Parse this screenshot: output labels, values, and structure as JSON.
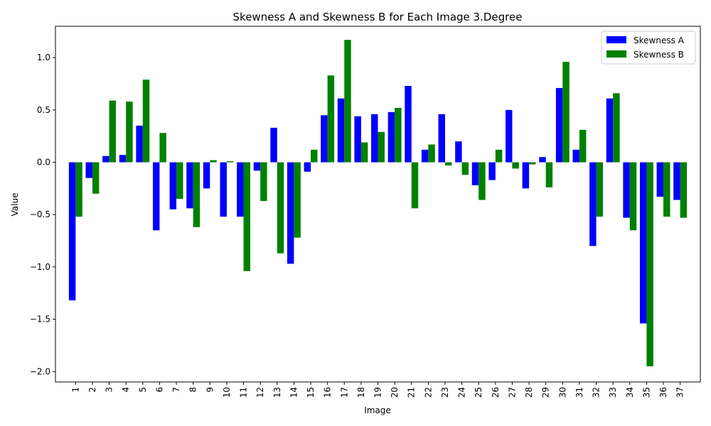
{
  "chart_data": {
    "type": "bar",
    "title": "Skewness A and Skewness B for Each Image 3.Degree",
    "xlabel": "Image",
    "ylabel": "Value",
    "ylim": [
      -2.1,
      1.3
    ],
    "yticks": [
      -2.0,
      -1.5,
      -1.0,
      -0.5,
      0.0,
      0.5,
      1.0
    ],
    "ytick_labels": [
      "−2.0",
      "−1.5",
      "−1.0",
      "−0.5",
      "0.0",
      "0.5",
      "1.0"
    ],
    "grid": false,
    "legend_position": "top-right",
    "categories": [
      "1",
      "2",
      "3",
      "4",
      "5",
      "6",
      "7",
      "8",
      "9",
      "10",
      "11",
      "12",
      "13",
      "14",
      "15",
      "16",
      "17",
      "18",
      "19",
      "20",
      "21",
      "22",
      "23",
      "24",
      "25",
      "26",
      "27",
      "28",
      "29",
      "30",
      "31",
      "32",
      "33",
      "34",
      "35",
      "36",
      "37"
    ],
    "series": [
      {
        "name": "Skewness A",
        "color": "#0000ff",
        "values": [
          -1.32,
          -0.15,
          0.06,
          0.07,
          0.35,
          -0.65,
          -0.45,
          -0.44,
          -0.25,
          -0.52,
          -0.52,
          -0.08,
          0.33,
          -0.97,
          -0.09,
          0.45,
          0.61,
          0.44,
          0.46,
          0.48,
          0.73,
          0.12,
          0.46,
          0.2,
          -0.22,
          -0.17,
          0.5,
          -0.25,
          0.05,
          0.71,
          0.12,
          -0.8,
          0.61,
          -0.53,
          -1.54,
          -0.33,
          -0.36
        ]
      },
      {
        "name": "Skewness B",
        "color": "#008000",
        "values": [
          -0.52,
          -0.3,
          0.59,
          0.58,
          0.79,
          0.28,
          -0.35,
          -0.62,
          0.02,
          0.01,
          -1.04,
          -0.37,
          -0.87,
          -0.72,
          0.12,
          0.83,
          1.17,
          0.19,
          0.29,
          0.52,
          -0.44,
          0.17,
          -0.03,
          -0.12,
          -0.36,
          0.12,
          -0.06,
          -0.02,
          -0.24,
          0.96,
          0.31,
          -0.52,
          0.66,
          -0.65,
          -1.95,
          -0.52,
          -0.53
        ]
      }
    ]
  }
}
